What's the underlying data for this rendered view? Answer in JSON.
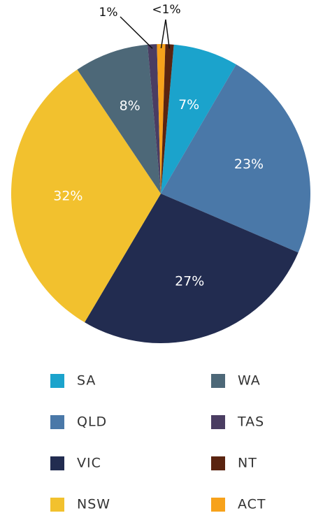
{
  "chart_data": {
    "type": "pie",
    "categories": [
      "SA",
      "QLD",
      "VIC",
      "NSW",
      "WA",
      "TAS",
      "ACT",
      "NT"
    ],
    "values": [
      7,
      23,
      27,
      32,
      8,
      1,
      0.9,
      0.9
    ],
    "value_labels": [
      "7%",
      "23%",
      "27%",
      "32%",
      "8%",
      "1%",
      "<1%",
      null
    ],
    "colors": [
      "#1ba3cc",
      "#4a78a8",
      "#222c50",
      "#f2c12e",
      "#4d6878",
      "#4a3d62",
      "#f7a21b",
      "#5a2410"
    ]
  }
}
